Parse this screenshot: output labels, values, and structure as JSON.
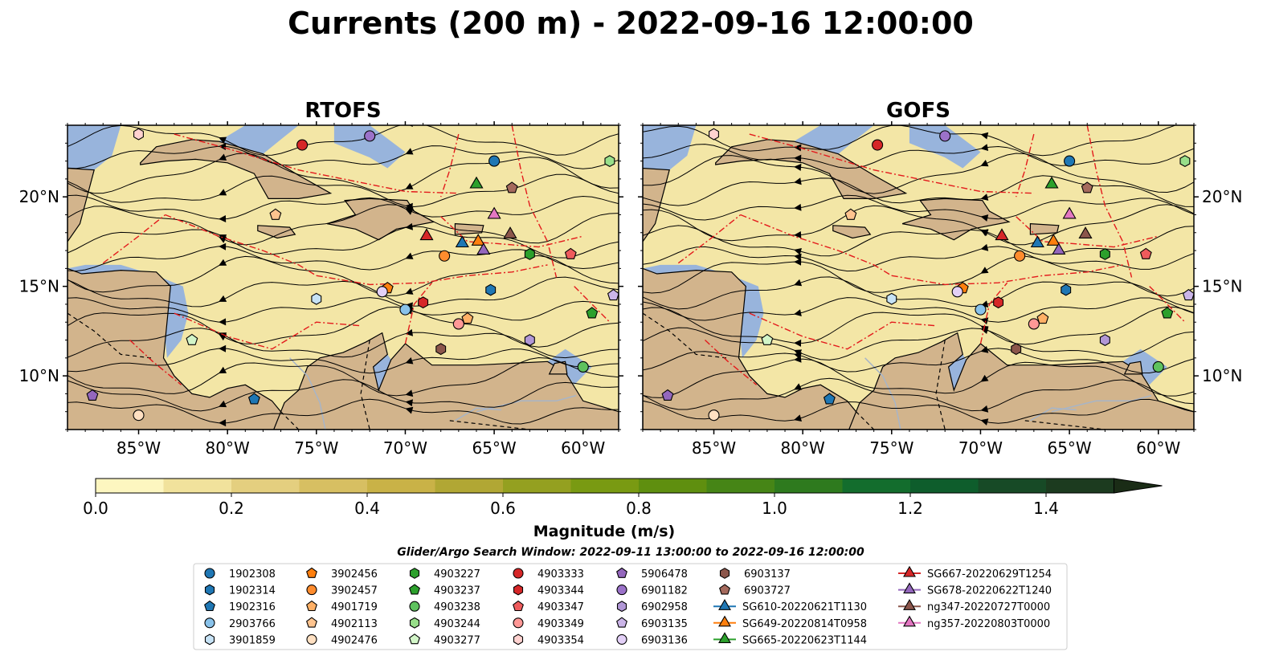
{
  "figure": {
    "title": "Currents (200 m) - 2022-09-16 12:00:00",
    "search_window": "Glider/Argo Search Window: 2022-09-11 13:00:00 to 2022-09-16 12:00:00"
  },
  "chart_data": {
    "type": "map",
    "panels": [
      {
        "title": "RTOFS"
      },
      {
        "title": "GOFS"
      }
    ],
    "lon_range": [
      -89,
      -58
    ],
    "lat_range": [
      7,
      24
    ],
    "x_ticks": [
      {
        "value": -85,
        "label": "85°W"
      },
      {
        "value": -80,
        "label": "80°W"
      },
      {
        "value": -75,
        "label": "75°W"
      },
      {
        "value": -70,
        "label": "70°W"
      },
      {
        "value": -65,
        "label": "65°W"
      },
      {
        "value": -60,
        "label": "60°W"
      }
    ],
    "y_ticks": [
      {
        "value": 10,
        "label": "10°N"
      },
      {
        "value": 15,
        "label": "15°N"
      },
      {
        "value": 20,
        "label": "20°N"
      }
    ],
    "colorbar": {
      "label": "Magnitude (m/s)",
      "min": 0,
      "max": 1.5,
      "step": 0.1,
      "extend": "max",
      "ticks": [
        {
          "value": 0,
          "label": "0.0"
        },
        {
          "value": 0.2,
          "label": "0.2"
        },
        {
          "value": 0.4,
          "label": "0.4"
        },
        {
          "value": 0.6,
          "label": "0.6"
        },
        {
          "value": 0.8,
          "label": "0.8"
        },
        {
          "value": 1.0,
          "label": "1.0"
        },
        {
          "value": 1.2,
          "label": "1.2"
        },
        {
          "value": 1.4,
          "label": "1.4"
        }
      ],
      "colors": [
        "#fdf6c0",
        "#f1e29c",
        "#e4cf7f",
        "#d7bf62",
        "#c9b247",
        "#b1a734",
        "#94a020",
        "#799a12",
        "#5f8f0f",
        "#468516",
        "#2e7a1e",
        "#136d2d",
        "#0e5d2c",
        "#174a26",
        "#1c3b1f",
        "#1a2c16",
        "#15200f"
      ]
    },
    "colors": {
      "ocean": "#f3e6a6",
      "land": "#d2b48c",
      "shelf": "#98b4dc",
      "eez_lines": "#e31a1c",
      "streamlines": "#000000",
      "rivers": "#a7b5c8"
    },
    "legend": [
      {
        "label": "1902308",
        "marker": "circle",
        "color": "#1f77b4"
      },
      {
        "label": "1902314",
        "marker": "hexagon",
        "color": "#1f77b4"
      },
      {
        "label": "1902316",
        "marker": "pentagon",
        "color": "#1f77b4"
      },
      {
        "label": "2903766",
        "marker": "circle",
        "color": "#89c2ea"
      },
      {
        "label": "3901859",
        "marker": "hexagon",
        "color": "#c6e2f5"
      },
      {
        "label": "3902456",
        "marker": "pentagon",
        "color": "#ff7f0e"
      },
      {
        "label": "3902457",
        "marker": "circle",
        "color": "#ff8c2e"
      },
      {
        "label": "4901719",
        "marker": "pentagon",
        "color": "#ffb066"
      },
      {
        "label": "4902113",
        "marker": "pentagon",
        "color": "#ffc48f"
      },
      {
        "label": "4902476",
        "marker": "circle",
        "color": "#ffe0c2"
      },
      {
        "label": "4903227",
        "marker": "hexagon",
        "color": "#2ca02c"
      },
      {
        "label": "4903237",
        "marker": "pentagon",
        "color": "#2ca02c"
      },
      {
        "label": "4903238",
        "marker": "circle",
        "color": "#5ec25e"
      },
      {
        "label": "4903244",
        "marker": "hexagon",
        "color": "#98df8a"
      },
      {
        "label": "4903277",
        "marker": "pentagon",
        "color": "#d2f5c8"
      },
      {
        "label": "4903333",
        "marker": "circle",
        "color": "#d62728"
      },
      {
        "label": "4903344",
        "marker": "hexagon",
        "color": "#d62728"
      },
      {
        "label": "4903347",
        "marker": "pentagon",
        "color": "#ee5b5c"
      },
      {
        "label": "4903349",
        "marker": "circle",
        "color": "#ff9896"
      },
      {
        "label": "4903354",
        "marker": "hexagon",
        "color": "#ffd2d0"
      },
      {
        "label": "5906478",
        "marker": "pentagon",
        "color": "#9467bd"
      },
      {
        "label": "6901182",
        "marker": "circle",
        "color": "#9b72c9"
      },
      {
        "label": "6902958",
        "marker": "hexagon",
        "color": "#b197d6"
      },
      {
        "label": "6903135",
        "marker": "pentagon",
        "color": "#cbb5e8"
      },
      {
        "label": "6903136",
        "marker": "circle",
        "color": "#e3d0f7"
      },
      {
        "label": "6903137",
        "marker": "hexagon",
        "color": "#8c564b"
      },
      {
        "label": "6903727",
        "marker": "pentagon",
        "color": "#a56a5d"
      },
      {
        "label": "SG610-20220621T1130",
        "marker": "triangle",
        "color": "#1f77b4"
      },
      {
        "label": "SG649-20220814T0958",
        "marker": "triangle",
        "color": "#ff7f0e"
      },
      {
        "label": "SG665-20220623T1144",
        "marker": "triangle",
        "color": "#2ca02c"
      },
      {
        "label": "SG667-20220629T1254",
        "marker": "triangle",
        "color": "#d62728"
      },
      {
        "label": "SG678-20220622T1240",
        "marker": "triangle",
        "color": "#9467bd"
      },
      {
        "label": "ng347-20220727T0000",
        "marker": "triangle",
        "color": "#8c564b"
      },
      {
        "label": "ng357-20220803T0000",
        "marker": "triangle",
        "color": "#e377c2"
      }
    ],
    "observations": [
      {
        "id": "1902308",
        "lon": -65.0,
        "lat": 22.0
      },
      {
        "id": "1902314",
        "lon": -65.2,
        "lat": 14.8
      },
      {
        "id": "1902316",
        "lon": -78.5,
        "lat": 8.7
      },
      {
        "id": "2903766",
        "lon": -70.0,
        "lat": 13.7
      },
      {
        "id": "3901859",
        "lon": -75.0,
        "lat": 14.3
      },
      {
        "id": "3902456",
        "lon": -71.0,
        "lat": 14.9
      },
      {
        "id": "3902457",
        "lon": -67.8,
        "lat": 16.7
      },
      {
        "id": "4901719",
        "lon": -66.5,
        "lat": 13.2
      },
      {
        "id": "4902113",
        "lon": -77.3,
        "lat": 19.0
      },
      {
        "id": "4902476",
        "lon": -85.0,
        "lat": 7.8
      },
      {
        "id": "4903227",
        "lon": -63.0,
        "lat": 16.8
      },
      {
        "id": "4903237",
        "lon": -59.5,
        "lat": 13.5
      },
      {
        "id": "4903238",
        "lon": -60.0,
        "lat": 10.5
      },
      {
        "id": "4903244",
        "lon": -58.5,
        "lat": 22.0
      },
      {
        "id": "4903277",
        "lon": -82.0,
        "lat": 12.0
      },
      {
        "id": "4903333",
        "lon": -75.8,
        "lat": 22.9
      },
      {
        "id": "4903344",
        "lon": -69.0,
        "lat": 14.1
      },
      {
        "id": "4903347",
        "lon": -60.7,
        "lat": 16.8
      },
      {
        "id": "4903349",
        "lon": -67.0,
        "lat": 12.9
      },
      {
        "id": "4903354",
        "lon": -85.0,
        "lat": 23.5
      },
      {
        "id": "5906478",
        "lon": -87.6,
        "lat": 8.9
      },
      {
        "id": "6901182",
        "lon": -72.0,
        "lat": 23.4
      },
      {
        "id": "6902958",
        "lon": -63.0,
        "lat": 12.0
      },
      {
        "id": "6903135",
        "lon": -58.3,
        "lat": 14.5
      },
      {
        "id": "6903136",
        "lon": -71.3,
        "lat": 14.7
      },
      {
        "id": "6903137",
        "lon": -68.0,
        "lat": 11.5
      },
      {
        "id": "6903727",
        "lon": -64.0,
        "lat": 20.5
      },
      {
        "id": "SG610-20220621T1130",
        "lon": -66.8,
        "lat": 17.4
      },
      {
        "id": "SG649-20220814T0958",
        "lon": -65.9,
        "lat": 17.5
      },
      {
        "id": "SG665-20220623T1144",
        "lon": -66.0,
        "lat": 20.7
      },
      {
        "id": "SG667-20220629T1254",
        "lon": -68.8,
        "lat": 17.8
      },
      {
        "id": "SG678-20220622T1240",
        "lon": -65.6,
        "lat": 17.0
      },
      {
        "id": "ng347-20220727T0000",
        "lon": -64.1,
        "lat": 17.9
      },
      {
        "id": "ng357-20220803T0000",
        "lon": -65.0,
        "lat": 19.0
      }
    ],
    "observation_positions_note": ""
  }
}
